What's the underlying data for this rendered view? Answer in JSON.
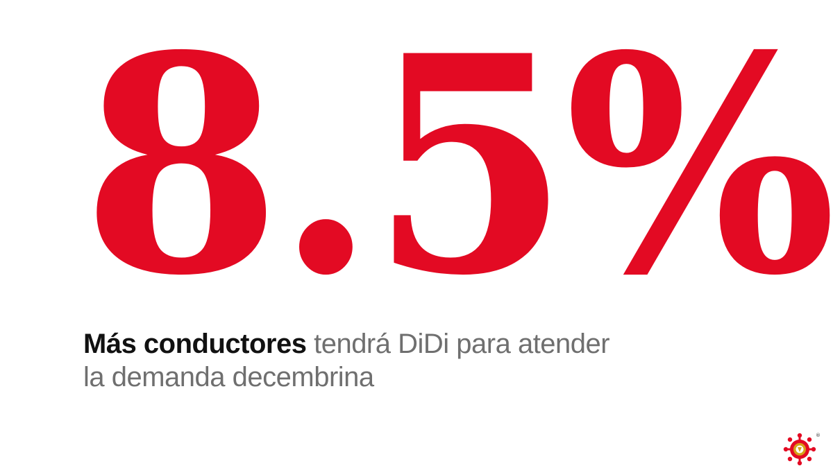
{
  "headline": {
    "value": "8.5%",
    "caption_bold": "Más conductores",
    "caption_rest": " tendrá DiDi para atender",
    "caption_line2": "la demanda decembrina"
  },
  "logo": {
    "icon": "publisher-sun-logo-icon",
    "registered_mark": "®"
  },
  "colors": {
    "accent": "#e30a23",
    "caption_text": "#6f6f6f",
    "caption_bold": "#111111",
    "logo_gold": "#d6a21a"
  }
}
